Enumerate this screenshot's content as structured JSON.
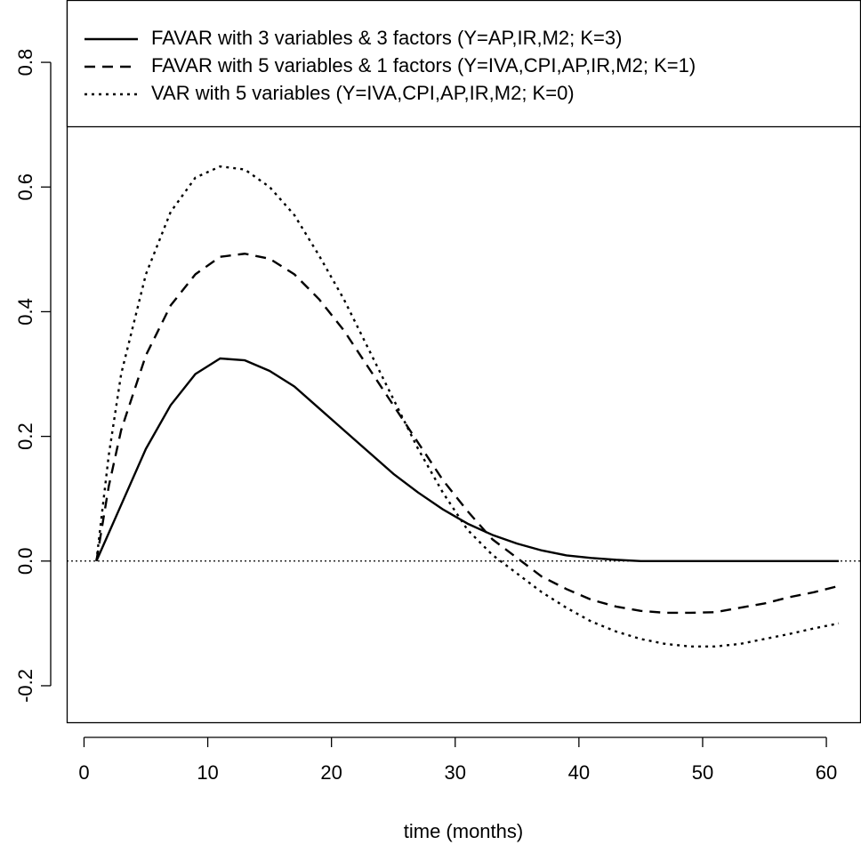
{
  "chart_data": {
    "type": "line",
    "x_label": "time (months)",
    "x": [
      1,
      2,
      3,
      5,
      7,
      9,
      11,
      13,
      15,
      17,
      19,
      21,
      23,
      25,
      27,
      29,
      31,
      33,
      35,
      37,
      39,
      41,
      43,
      45,
      47,
      49,
      51,
      53,
      55,
      57,
      59,
      61
    ],
    "series": [
      {
        "name": "FAVAR with 3 variables & 3 factors (Y=AP,IR,M2; K=3)",
        "color": "#000000",
        "dash": "solid",
        "values": [
          0,
          0.045,
          0.09,
          0.18,
          0.25,
          0.3,
          0.325,
          0.322,
          0.305,
          0.28,
          0.245,
          0.21,
          0.175,
          0.14,
          0.11,
          0.083,
          0.06,
          0.042,
          0.028,
          0.017,
          0.009,
          0.005,
          0.002,
          0,
          0,
          0,
          0,
          0,
          0,
          0,
          0,
          0
        ]
      },
      {
        "name": "FAVAR with 5 variables & 1 factors (Y=IVA,CPI,AP,IR,M2; K=1)",
        "color": "#000000",
        "dash": "dashed",
        "values": [
          0,
          0.12,
          0.21,
          0.33,
          0.41,
          0.46,
          0.488,
          0.493,
          0.485,
          0.46,
          0.42,
          0.37,
          0.31,
          0.25,
          0.19,
          0.13,
          0.08,
          0.035,
          0.005,
          -0.025,
          -0.045,
          -0.062,
          -0.073,
          -0.08,
          -0.083,
          -0.083,
          -0.082,
          -0.075,
          -0.068,
          -0.058,
          -0.05,
          -0.04
        ]
      },
      {
        "name": "VAR with 5 variables (Y=IVA,CPI,AP,IR,M2; K=0)",
        "color": "#000000",
        "dash": "dotted",
        "values": [
          0,
          0.17,
          0.3,
          0.46,
          0.56,
          0.615,
          0.633,
          0.628,
          0.6,
          0.555,
          0.49,
          0.42,
          0.34,
          0.26,
          0.18,
          0.11,
          0.05,
          0.01,
          -0.02,
          -0.05,
          -0.075,
          -0.097,
          -0.113,
          -0.125,
          -0.133,
          -0.137,
          -0.137,
          -0.133,
          -0.125,
          -0.117,
          -0.108,
          -0.1
        ]
      }
    ],
    "xlim": [
      -1.4,
      62.8
    ],
    "ylim": [
      -0.26,
      0.9
    ],
    "xticks": [
      0,
      10,
      20,
      30,
      40,
      50,
      60
    ],
    "yticks": [
      -0.2,
      {
        "value": 0,
        "label": "0.0"
      },
      0.2,
      0.4,
      0.6,
      0.8
    ],
    "reference_line": 0,
    "legend": "top"
  }
}
